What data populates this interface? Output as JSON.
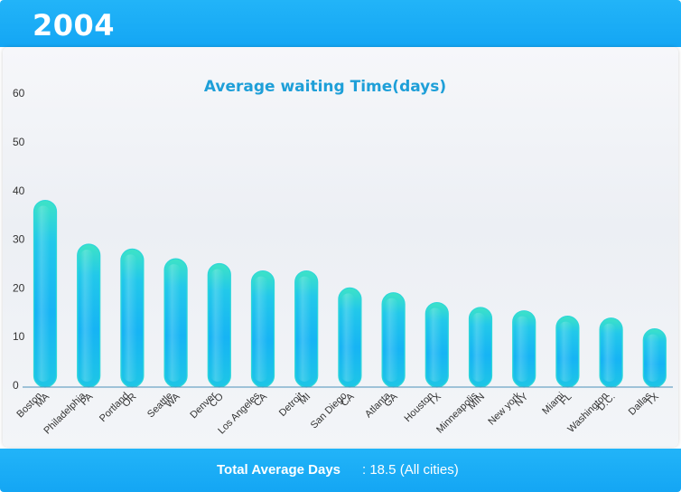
{
  "header": {
    "year": "2004"
  },
  "chart_data": {
    "type": "bar",
    "title": "Average waiting Time(days)",
    "xlabel": "",
    "ylabel": "",
    "ylim": [
      0,
      60
    ],
    "yticks": [
      0,
      10,
      20,
      30,
      40,
      50,
      60
    ],
    "grid": false,
    "categories": [
      [
        "Boston",
        "MA"
      ],
      [
        "Philadelphia",
        "PA"
      ],
      [
        "Portland",
        "OR"
      ],
      [
        "Seattle",
        "WA"
      ],
      [
        "Denver",
        "CO"
      ],
      [
        "Los Angeles",
        "CA"
      ],
      [
        "Detroit",
        "MI"
      ],
      [
        "San Diego",
        "CA"
      ],
      [
        "Atlanta",
        "GA"
      ],
      [
        "Houston",
        "TX"
      ],
      [
        "Minneapolis",
        "MIN"
      ],
      [
        "New york",
        "NY"
      ],
      [
        "Miami",
        "FL"
      ],
      [
        "Washington",
        "D.C."
      ],
      [
        "Dallas",
        "TX"
      ]
    ],
    "values": [
      38,
      29,
      28,
      26,
      25,
      23.5,
      23.5,
      20,
      19,
      17,
      16,
      15.3,
      14.2,
      13.8,
      11.6
    ],
    "bar_colors": {
      "top": "#3ee3c6",
      "mid": "#18b9f2",
      "bottom": "#14aef0"
    },
    "axis_color": "#4a90b8"
  },
  "footer": {
    "label": "Total Average Days",
    "value": ": 18.5 (All cities)"
  }
}
